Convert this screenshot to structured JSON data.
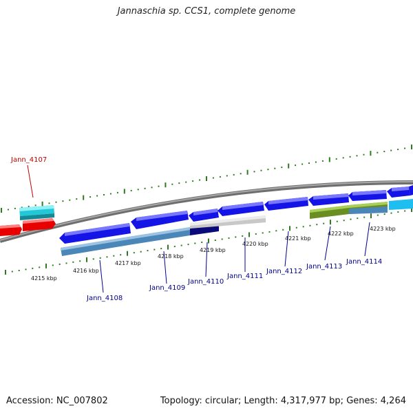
{
  "title": "Jannaschia sp. CCS1, complete genome",
  "accession": "Accession: NC_007802",
  "topology": {
    "topology_text": "Topology: circular; ",
    "length_text": "Length: 4,317,977 bp; ",
    "genes_text": "Genes: 4,264"
  },
  "colors": {
    "backbone": "#8c8c8c",
    "tick": "#2d7a1f",
    "label_forward": "#c00000",
    "label_reverse": "#00008b",
    "gene_red": "#e80000",
    "gene_cyan": "#22c8d8",
    "gene_blue": "#1414e6",
    "gene_steel": "#4a86b8",
    "gene_olive": "#6b8e23",
    "gene_light_blue": "#1ebef0",
    "gene_grey": "#c8c8c8",
    "gene_navy": "#0a0a78"
  },
  "scale_labels": [
    "4215 kbp",
    "4216 kbp",
    "4217 kbp",
    "4218 kbp",
    "4219 kbp",
    "4220 kbp",
    "4221 kbp",
    "4222 kbp",
    "4223 kbp"
  ],
  "genes": [
    {
      "name": "Jann_4107",
      "color": "gene_red",
      "strand": "forward"
    },
    {
      "name": "Jann_4108",
      "color": "gene_blue",
      "strand": "reverse"
    },
    {
      "name": "Jann_4109",
      "color": "gene_blue",
      "strand": "reverse"
    },
    {
      "name": "Jann_4110",
      "color": "gene_blue",
      "strand": "reverse"
    },
    {
      "name": "Jann_4111",
      "color": "gene_blue",
      "strand": "reverse"
    },
    {
      "name": "Jann_4112",
      "color": "gene_blue",
      "strand": "reverse"
    },
    {
      "name": "Jann_4113",
      "color": "gene_blue",
      "strand": "reverse"
    },
    {
      "name": "Jann_4114",
      "color": "gene_blue",
      "strand": "reverse"
    }
  ]
}
